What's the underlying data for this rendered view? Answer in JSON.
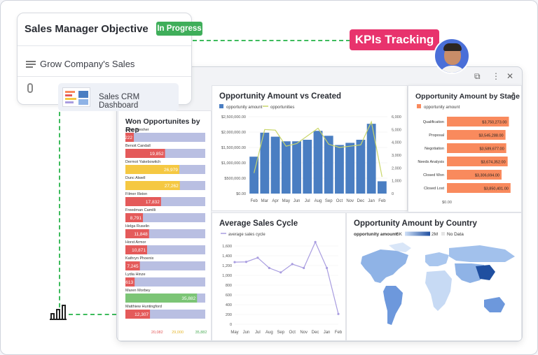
{
  "objective": {
    "title": "Sales Manager Objective",
    "status": "In Progress",
    "goal": "Grow Company's Sales",
    "attachment": "Sales CRM Dashboard"
  },
  "kpi_tag": "KPIs Tracking",
  "colors": {
    "green": "#3fae5a",
    "pink": "#e8336d",
    "blue": "#4a7ec2",
    "orange": "#f98a5d",
    "lavender": "#a99de0",
    "red": "#e45a5a",
    "yellow": "#f5c842"
  },
  "icons": [
    "list-lines-icon",
    "paperclip-icon",
    "bar-chart-icon",
    "expand-icon",
    "more-icon",
    "close-icon",
    "copy-icon"
  ],
  "chart_data": [
    {
      "type": "bar",
      "title": "Won Opportunites by Rep",
      "categories": [
        "Arlen Bresher",
        "Benoit Candall",
        "Dermot Yakebowitch",
        "Dunc Alwell",
        "Filmer Illston",
        "Freedman Camilli",
        "Helga Ruselin",
        "Horst Armor",
        "Kathryn Phoenix",
        "Lydia Hinze",
        "Maren Morbey",
        "Matthiew Huntingford"
      ],
      "values": [
        4222,
        19852,
        26979,
        27262,
        17832,
        8791,
        11848,
        10871,
        7245,
        4613,
        35882,
        12307
      ],
      "value_labels": [
        "4,222",
        "19,852",
        "26,979",
        "27,262",
        "17,832",
        "8,791",
        "11,848",
        "10,871",
        "7,245",
        "4,613",
        "35,882",
        "12,307"
      ],
      "thresholds": [
        "20,082",
        "29,000",
        "35,882"
      ]
    },
    {
      "type": "bar",
      "title": "Opportunity Amount vs Created",
      "legend": [
        "opportunity amount",
        "opportunities"
      ],
      "categories": [
        "Feb",
        "Mar",
        "Apr",
        "May",
        "Jun",
        "Jul",
        "Aug",
        "Sep",
        "Oct",
        "Nov",
        "Dec",
        "Jan",
        "Feb"
      ],
      "series": [
        {
          "name": "opportunity amount",
          "values": [
            1200000,
            1980000,
            1850000,
            1700000,
            1700000,
            1750000,
            2040000,
            1880000,
            1580000,
            1650000,
            1750000,
            2270000,
            400000
          ]
        },
        {
          "name": "opportunities",
          "values": [
            1600,
            5000,
            4950,
            3700,
            3900,
            4500,
            5100,
            3850,
            3600,
            3700,
            3800,
            5600,
            1300
          ]
        }
      ],
      "yticks_left": [
        "$2,500,000.00",
        "$2,000,000.00",
        "$1,500,000.00",
        "$1,000,000.00",
        "$500,000.00",
        "$0.00"
      ],
      "yticks_right": [
        "6,000",
        "5,000",
        "4,000",
        "3,000",
        "2,000",
        "1,000",
        "0"
      ],
      "ylim": [
        0,
        2500000
      ],
      "ylim_right": [
        0,
        6000
      ]
    },
    {
      "type": "bar",
      "title": "Opportunity Amount by Stage",
      "legend": [
        "opportunity amount"
      ],
      "categories": [
        "Qualification",
        "Proposal",
        "Negotiation",
        "Needs Analysis",
        "Closed Won",
        "Closed Lost"
      ],
      "values": [
        3750273,
        3545288,
        3589677,
        3674352,
        3306694,
        3850401
      ],
      "value_labels": [
        "$3,750,273.00",
        "$3,545,288.00",
        "$3,589,677.00",
        "$3,674,352.00",
        "$3,306,694.00",
        "$3,850,401.00"
      ],
      "xtick": "$0.00"
    },
    {
      "type": "line",
      "title": "Average Sales Cycle",
      "legend": [
        "average sales cycle"
      ],
      "categories": [
        "May",
        "Jun",
        "Jul",
        "Aug",
        "Sep",
        "Oct",
        "Nov",
        "Dec",
        "Jan",
        "Feb"
      ],
      "values": [
        1270,
        1275,
        1360,
        1150,
        1060,
        1230,
        1150,
        1680,
        1150,
        210
      ],
      "yticks": [
        "1,600",
        "1,400",
        "1,200",
        "1,000",
        "800",
        "600",
        "400",
        "200",
        "0"
      ],
      "ylim": [
        0,
        1700
      ]
    },
    {
      "type": "heatmap",
      "title": "Opportunity Amount by Country",
      "legend_label": "opportunity amount:",
      "legend_min": "6K",
      "legend_max": "2M",
      "legend_nodata": "No Data"
    }
  ]
}
